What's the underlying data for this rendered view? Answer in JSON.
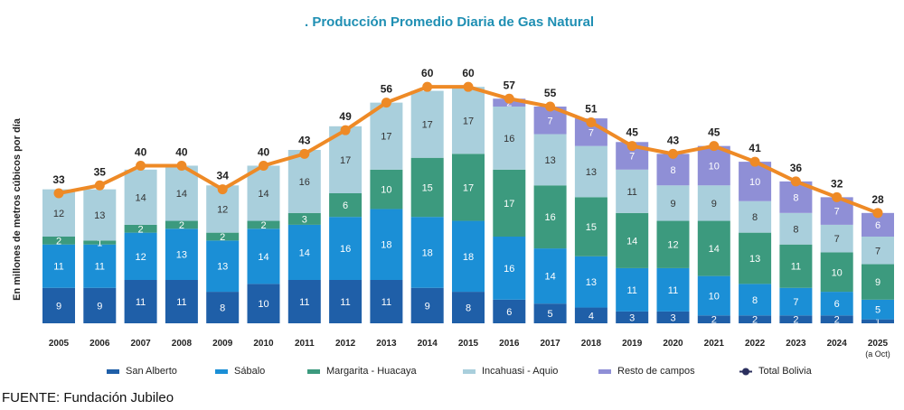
{
  "chart_data": {
    "type": "bar",
    "title": ". Producción Promedio Diaria de Gas Natural",
    "ylabel": "En millones de metros cúbicos por día",
    "ylim": [
      0,
      66
    ],
    "categories": [
      "2005",
      "2006",
      "2007",
      "2008",
      "2009",
      "2010",
      "2011",
      "2012",
      "2013",
      "2014",
      "2015",
      "2016",
      "2017",
      "2018",
      "2019",
      "2020",
      "2021",
      "2022",
      "2023",
      "2024",
      "2025"
    ],
    "last_category_note": "(a Oct)",
    "series": [
      {
        "name": "San Alberto",
        "color": "#1f5fa8",
        "text_color": "#ffffff",
        "values": [
          9,
          9,
          11,
          11,
          8,
          10,
          11,
          11,
          11,
          9,
          8,
          6,
          5,
          4,
          3,
          3,
          2,
          2,
          2,
          2,
          1
        ]
      },
      {
        "name": "Sábalo",
        "color": "#1b8fd6",
        "text_color": "#ffffff",
        "values": [
          11,
          11,
          12,
          13,
          13,
          14,
          14,
          16,
          18,
          18,
          18,
          16,
          14,
          13,
          11,
          11,
          10,
          8,
          7,
          6,
          5
        ]
      },
      {
        "name": "Margarita - Huacaya",
        "color": "#3c9a7e",
        "text_color": "#ffffff",
        "values": [
          2,
          1,
          2,
          2,
          2,
          2,
          3,
          6,
          10,
          15,
          17,
          17,
          16,
          15,
          14,
          12,
          14,
          13,
          11,
          10,
          9
        ]
      },
      {
        "name": "Incahuasi - Aquio",
        "color": "#a9cfdc",
        "text_color": "#333333",
        "values": [
          12,
          13,
          14,
          14,
          12,
          14,
          16,
          17,
          17,
          17,
          17,
          16,
          13,
          13,
          11,
          9,
          9,
          8,
          8,
          7,
          7
        ]
      },
      {
        "name": "Resto de campos",
        "color": "#8f8fd6",
        "text_color": "#ffffff",
        "values": [
          0,
          0,
          0,
          0,
          0,
          0,
          0,
          0,
          0,
          0,
          0,
          2,
          7,
          7,
          7,
          8,
          10,
          10,
          8,
          7,
          6
        ]
      }
    ],
    "total": {
      "name": "Total Bolivia",
      "color": "#ee8a26",
      "values": [
        33,
        35,
        40,
        40,
        34,
        40,
        43,
        49,
        56,
        60,
        60,
        57,
        55,
        51,
        45,
        43,
        45,
        41,
        36,
        32,
        28
      ]
    },
    "legend_placement": "bottom",
    "grid": false
  },
  "source": "FUENTE: Fundación Jubileo"
}
